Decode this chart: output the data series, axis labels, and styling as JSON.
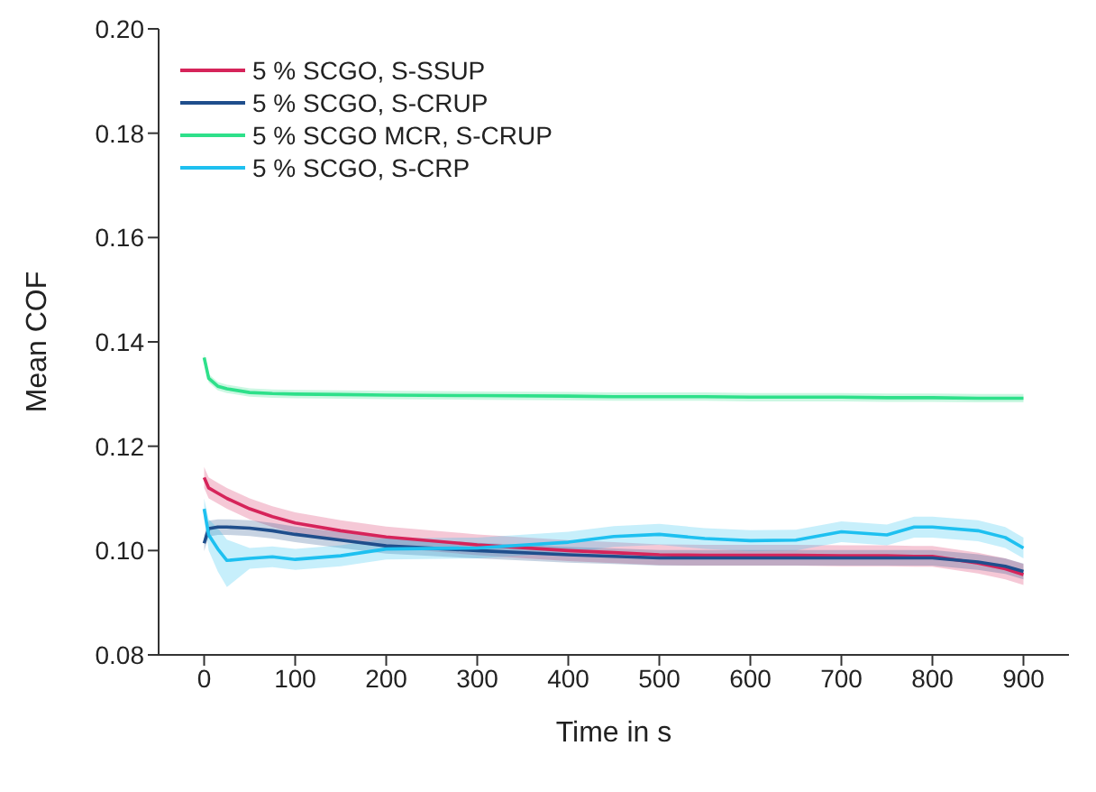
{
  "chart_data": {
    "type": "line",
    "xlabel": "Time in s",
    "ylabel": "Mean COF",
    "x": [
      0,
      5,
      15,
      25,
      50,
      75,
      100,
      150,
      200,
      300,
      400,
      450,
      500,
      550,
      600,
      650,
      700,
      750,
      780,
      800,
      850,
      880,
      900
    ],
    "xlim": [
      -50,
      950
    ],
    "xticks": [
      0,
      100,
      200,
      300,
      400,
      500,
      600,
      700,
      800,
      900
    ],
    "ylim": [
      0.08,
      0.2
    ],
    "yticks": [
      {
        "value": 0.08,
        "label": "0.08"
      },
      {
        "value": 0.1,
        "label": "0.10"
      },
      {
        "value": 0.12,
        "label": "0.12"
      },
      {
        "value": 0.14,
        "label": "0.14"
      },
      {
        "value": 0.16,
        "label": "0.16"
      },
      {
        "value": 0.18,
        "label": "0.18"
      },
      {
        "value": 0.2,
        "label": "0.20"
      }
    ],
    "grid": false,
    "legend": "top left",
    "marker": "none",
    "line_style": "solid",
    "series": [
      {
        "name": "5 % SCGO, S-SSUP",
        "color": "#d6245a",
        "values": [
          0.114,
          0.112,
          0.111,
          0.11,
          0.108,
          0.1065,
          0.1053,
          0.1038,
          0.1026,
          0.1011,
          0.1,
          0.0996,
          0.0992,
          0.0991,
          0.0991,
          0.0991,
          0.099,
          0.099,
          0.0989,
          0.0989,
          0.0976,
          0.0965,
          0.0954
        ],
        "lower": [
          0.112,
          0.11,
          0.109,
          0.108,
          0.106,
          0.1045,
          0.1033,
          0.1018,
          0.1006,
          0.0991,
          0.098,
          0.0976,
          0.0972,
          0.0971,
          0.0971,
          0.0971,
          0.097,
          0.097,
          0.0969,
          0.0969,
          0.0956,
          0.0945,
          0.0934
        ],
        "upper": [
          0.116,
          0.114,
          0.113,
          0.112,
          0.11,
          0.1085,
          0.1073,
          0.1058,
          0.1046,
          0.1031,
          0.102,
          0.1016,
          0.1012,
          0.1011,
          0.1011,
          0.1011,
          0.101,
          0.101,
          0.1009,
          0.1009,
          0.0996,
          0.0985,
          0.0974
        ]
      },
      {
        "name": "5 % SCGO, S-CRUP",
        "color": "#1f4e8c",
        "values": [
          0.1014,
          0.1042,
          0.1045,
          0.1045,
          0.1043,
          0.1038,
          0.1031,
          0.102,
          0.1009,
          0.1,
          0.0992,
          0.0989,
          0.0986,
          0.0986,
          0.0986,
          0.0986,
          0.0986,
          0.0986,
          0.0986,
          0.0986,
          0.0978,
          0.097,
          0.096
        ],
        "lower": [
          0.0999,
          0.1027,
          0.103,
          0.103,
          0.1028,
          0.1023,
          0.1016,
          0.1005,
          0.0994,
          0.0985,
          0.0977,
          0.0974,
          0.0971,
          0.0971,
          0.0971,
          0.0971,
          0.0971,
          0.0971,
          0.0971,
          0.0971,
          0.0963,
          0.0955,
          0.0945
        ],
        "upper": [
          0.1029,
          0.1057,
          0.106,
          0.106,
          0.1058,
          0.1053,
          0.1046,
          0.1035,
          0.1024,
          0.1015,
          0.1007,
          0.1004,
          0.1001,
          0.1001,
          0.1001,
          0.1001,
          0.1001,
          0.1001,
          0.1001,
          0.1001,
          0.0993,
          0.0985,
          0.0975
        ]
      },
      {
        "name": "5 % SCGO MCR, S-CRUP",
        "color": "#2ee08a",
        "values": [
          0.137,
          0.133,
          0.1315,
          0.131,
          0.1303,
          0.1301,
          0.13,
          0.1299,
          0.1298,
          0.1297,
          0.1296,
          0.1295,
          0.1295,
          0.1295,
          0.1294,
          0.1294,
          0.1294,
          0.1293,
          0.1293,
          0.1293,
          0.1292,
          0.1292,
          0.1292
        ],
        "lower": [
          0.1362,
          0.1322,
          0.1307,
          0.1302,
          0.1295,
          0.1293,
          0.1292,
          0.1291,
          0.129,
          0.1289,
          0.1288,
          0.1287,
          0.1287,
          0.1287,
          0.1286,
          0.1286,
          0.1286,
          0.1285,
          0.1285,
          0.1285,
          0.1284,
          0.1284,
          0.1284
        ],
        "upper": [
          0.1378,
          0.1338,
          0.1323,
          0.1318,
          0.1311,
          0.1309,
          0.1308,
          0.1307,
          0.1306,
          0.1305,
          0.1304,
          0.1303,
          0.1303,
          0.1303,
          0.1302,
          0.1302,
          0.1302,
          0.1301,
          0.1301,
          0.1301,
          0.13,
          0.13,
          0.13
        ]
      },
      {
        "name": "5 % SCGO, S-CRP",
        "color": "#1ec0f0",
        "values": [
          0.108,
          0.103,
          0.1003,
          0.0981,
          0.0985,
          0.0988,
          0.0983,
          0.099,
          0.1003,
          0.1005,
          0.1016,
          0.1027,
          0.1031,
          0.1023,
          0.1019,
          0.102,
          0.1036,
          0.103,
          0.1045,
          0.1045,
          0.1038,
          0.1025,
          0.1005
        ],
        "lower": [
          0.106,
          0.1,
          0.096,
          0.093,
          0.0965,
          0.0968,
          0.0963,
          0.097,
          0.0983,
          0.0985,
          0.0996,
          0.1007,
          0.1011,
          0.1003,
          0.0999,
          0.1,
          0.1016,
          0.101,
          0.1025,
          0.1025,
          0.1018,
          0.1005,
          0.0985
        ],
        "upper": [
          0.11,
          0.106,
          0.1043,
          0.1021,
          0.1005,
          0.1008,
          0.1003,
          0.101,
          0.1023,
          0.1025,
          0.1036,
          0.1047,
          0.1051,
          0.1043,
          0.1039,
          0.104,
          0.1056,
          0.105,
          0.1065,
          0.1065,
          0.1058,
          0.1045,
          0.1025
        ]
      }
    ]
  }
}
